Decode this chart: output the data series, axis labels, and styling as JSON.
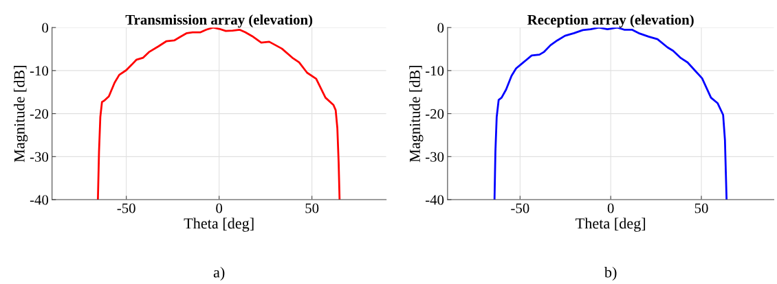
{
  "chart_data": [
    {
      "type": "line",
      "title": "Transmission array (elevation)",
      "xlabel": "Theta [deg]",
      "ylabel": "Magnitude [dB]",
      "annotations": [
        "a)"
      ],
      "xlim": [
        -90,
        90
      ],
      "xticks": [
        -50,
        0,
        50
      ],
      "ylim": [
        -40,
        0
      ],
      "yticks": [
        -40,
        -30,
        -20,
        -10,
        0
      ],
      "grid": true,
      "series": [
        {
          "color": "#ff0000",
          "x": [
            -65.3,
            -64.7,
            -64,
            -63.1,
            -61.9,
            -59.4,
            -56.3,
            -53.8,
            -50,
            -47,
            -44.6,
            -40.9,
            -37.8,
            -32.8,
            -28.5,
            -24.2,
            -21.1,
            -17.4,
            -14.3,
            -10,
            -6.9,
            -3.2,
            0,
            3.6,
            7.3,
            11,
            14.1,
            17.8,
            22.7,
            27,
            33.8,
            39.4,
            43.1,
            47.4,
            52.3,
            57.3,
            61.6,
            62.8,
            63.7,
            64.4,
            64.9
          ],
          "values": [
            -40,
            -28.8,
            -20.8,
            -17.3,
            -17.0,
            -16.0,
            -12.8,
            -11.0,
            -9.9,
            -8.6,
            -7.5,
            -7.0,
            -5.7,
            -4.4,
            -3.2,
            -3.0,
            -2.2,
            -1.3,
            -1.1,
            -1.1,
            -0.5,
            0,
            -0.3,
            -0.8,
            -0.7,
            -0.5,
            -1.1,
            -2.0,
            -3.5,
            -3.3,
            -4.9,
            -7.0,
            -8.1,
            -10.5,
            -11.9,
            -16.3,
            -18.0,
            -19.2,
            -23.4,
            -31.4,
            -40
          ]
        }
      ]
    },
    {
      "type": "line",
      "title": "Reception array (elevation)",
      "xlabel": "Theta [deg]",
      "ylabel": "Magnitude [dB]",
      "annotations": [
        "b)"
      ],
      "xlim": [
        -90,
        90
      ],
      "xticks": [
        -50,
        0,
        50
      ],
      "ylim": [
        -40,
        0
      ],
      "yticks": [
        -40,
        -30,
        -20,
        -10,
        0
      ],
      "grid": true,
      "series": [
        {
          "color": "#0000ff",
          "x": [
            -64.1,
            -63.6,
            -62.9,
            -61.8,
            -60.2,
            -57.7,
            -54.7,
            -52.2,
            -48.5,
            -43.6,
            -39.3,
            -36.9,
            -33.2,
            -29.5,
            -25.2,
            -20.3,
            -15.4,
            -11.1,
            -6.5,
            -1.8,
            3.7,
            7.4,
            11.7,
            16,
            20.9,
            25.8,
            31.3,
            34.4,
            38.7,
            42.4,
            46.7,
            50.4,
            55.3,
            59,
            62,
            63,
            63.9
          ],
          "values": [
            -40,
            -28.8,
            -20.8,
            -16.8,
            -16.3,
            -14.4,
            -11.2,
            -9.5,
            -8.2,
            -6.5,
            -6.3,
            -5.7,
            -4.1,
            -3.0,
            -1.9,
            -1.3,
            -0.6,
            -0.4,
            0,
            -0.4,
            0,
            -0.5,
            -0.5,
            -1.4,
            -2.1,
            -2.7,
            -4.6,
            -5.4,
            -7.1,
            -8.1,
            -10.1,
            -11.8,
            -16.3,
            -17.6,
            -20.3,
            -26.1,
            -40
          ]
        }
      ]
    }
  ]
}
